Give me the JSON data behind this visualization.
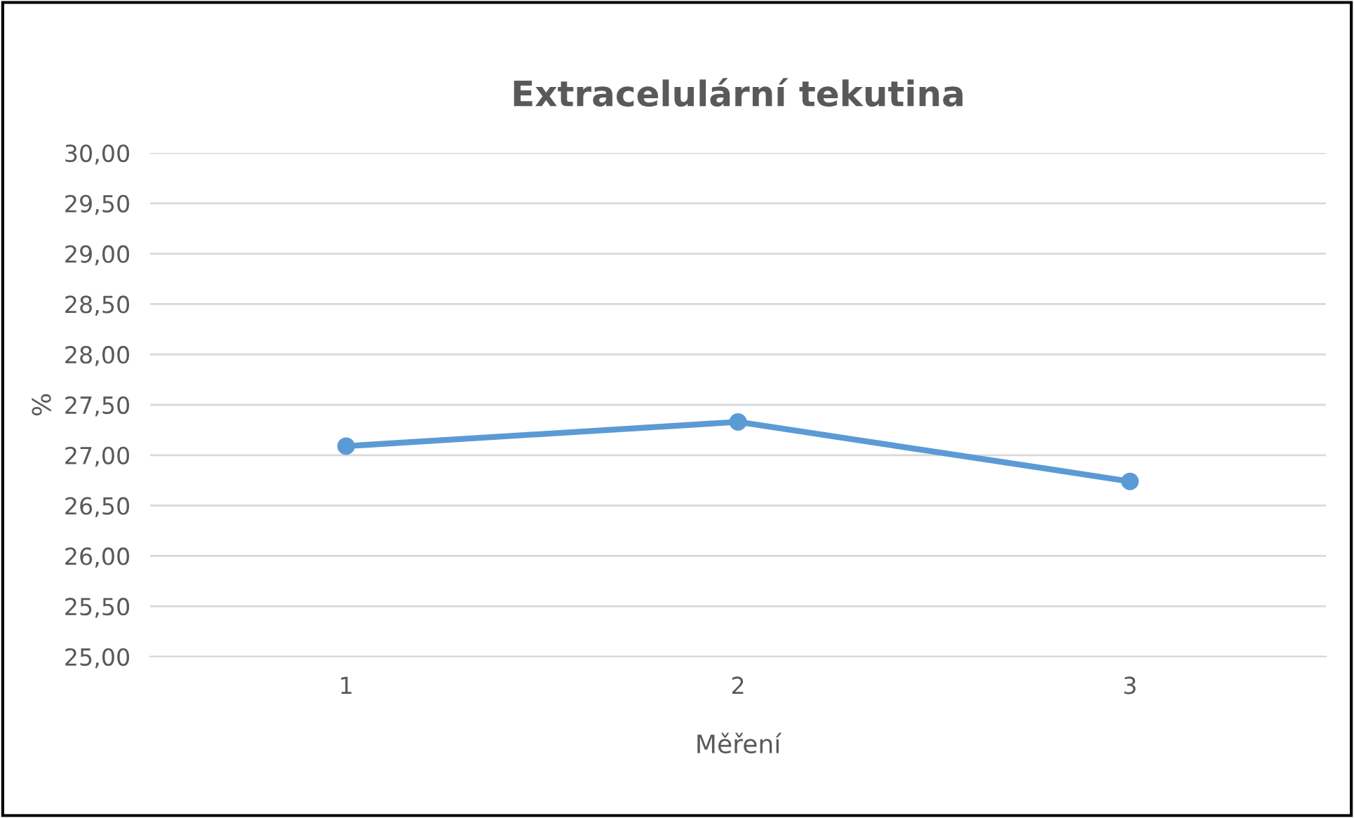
{
  "chart_data": {
    "type": "line",
    "title": "Extracelulární tekutina",
    "xlabel": "Měření",
    "ylabel": "%",
    "categories": [
      "1",
      "2",
      "3"
    ],
    "series": [
      {
        "color": "#5b9bd5",
        "values": [
          27.09,
          27.33,
          26.74
        ]
      }
    ],
    "ylim": [
      25,
      30
    ],
    "yticks": [
      {
        "value": 25,
        "label": "25,00"
      },
      {
        "value": 25.5,
        "label": "25,50"
      },
      {
        "value": 26,
        "label": "26,00"
      },
      {
        "value": 26.5,
        "label": "26,50"
      },
      {
        "value": 27,
        "label": "27,00"
      },
      {
        "value": 27.5,
        "label": "27,50"
      },
      {
        "value": 28,
        "label": "28,00"
      },
      {
        "value": 28.5,
        "label": "28,50"
      },
      {
        "value": 29,
        "label": "29,00"
      },
      {
        "value": 29.5,
        "label": "29,50"
      },
      {
        "value": 30,
        "label": "30,00"
      }
    ],
    "grid": "y",
    "marker": "circle",
    "line_style": "solid",
    "legend": false
  }
}
